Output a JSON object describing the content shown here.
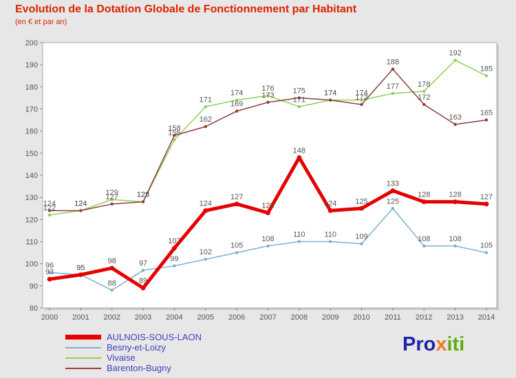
{
  "header": {
    "title": "Evolution de la Dotation Globale de Fonctionnement par Habitant",
    "subtitle": "(en € et par an)"
  },
  "chart_data": {
    "type": "line",
    "x": [
      "2000",
      "2001",
      "2002",
      "2003",
      "2004",
      "2005",
      "2006",
      "2007",
      "2008",
      "2009",
      "2010",
      "2011",
      "2012",
      "2013",
      "2014"
    ],
    "series": [
      {
        "name": "AULNOIS-SOUS-LAON",
        "color": "#e60000",
        "width": 5,
        "values": [
          93,
          95,
          98,
          89,
          107,
          124,
          127,
          123,
          148,
          124,
          125,
          133,
          128,
          128,
          127
        ]
      },
      {
        "name": "Besny-et-Loizy",
        "color": "#7ab0d4",
        "width": 1.5,
        "values": [
          96,
          95,
          88,
          97,
          99,
          102,
          105,
          108,
          110,
          110,
          109,
          125,
          108,
          108,
          105
        ]
      },
      {
        "name": "Vivaise",
        "color": "#8ed054",
        "width": 1.5,
        "values": [
          122,
          124,
          129,
          128,
          156,
          171,
          174,
          176,
          171,
          174,
          174,
          177,
          178,
          192,
          185
        ]
      },
      {
        "name": "Barenton-Bugny",
        "color": "#8e3d3d",
        "width": 1.5,
        "values": [
          124,
          124,
          127,
          128,
          158,
          162,
          169,
          173,
          175,
          174,
          172,
          188,
          172,
          163,
          165
        ]
      }
    ],
    "ylim": [
      80,
      200
    ],
    "ytick_step": 10,
    "grid": false,
    "legend_position": "bottom-left",
    "label_color": "#555555",
    "axis_text_color": "#555555"
  },
  "logo": {
    "parts": [
      {
        "text": "Pro",
        "color": "#2121b0"
      },
      {
        "text": "x",
        "color": "#f07a1e"
      },
      {
        "text": "iti",
        "color": "#62aa14"
      }
    ]
  }
}
